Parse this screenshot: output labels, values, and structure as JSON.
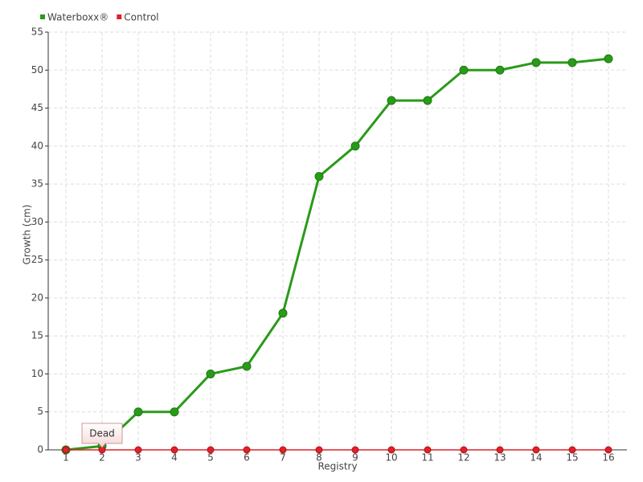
{
  "chart_data": {
    "type": "line",
    "x_label": "Registry",
    "y_label": "Growth (cm)",
    "categories": [
      "1",
      "2",
      "3",
      "4",
      "5",
      "6",
      "7",
      "8",
      "9",
      "10",
      "11",
      "12",
      "13",
      "14",
      "15",
      "16"
    ],
    "series": [
      {
        "name": "Waterboxx®",
        "color": "#2a9a1a",
        "values": [
          0,
          0.5,
          5,
          5,
          10,
          11,
          18,
          36,
          40,
          46,
          46,
          50,
          50,
          51,
          51,
          51.5
        ]
      },
      {
        "name": "Control",
        "color": "#e0202a",
        "values": [
          0,
          0,
          0,
          0,
          0,
          0,
          0,
          0,
          0,
          0,
          0,
          0,
          0,
          0,
          0,
          0
        ]
      }
    ],
    "annotations": [
      {
        "text": "Dead"
      }
    ],
    "ylim": [
      0,
      55
    ],
    "yticks": [
      0,
      5,
      10,
      15,
      20,
      25,
      30,
      35,
      40,
      45,
      50,
      55
    ],
    "grid": true,
    "legend": "top-left"
  }
}
